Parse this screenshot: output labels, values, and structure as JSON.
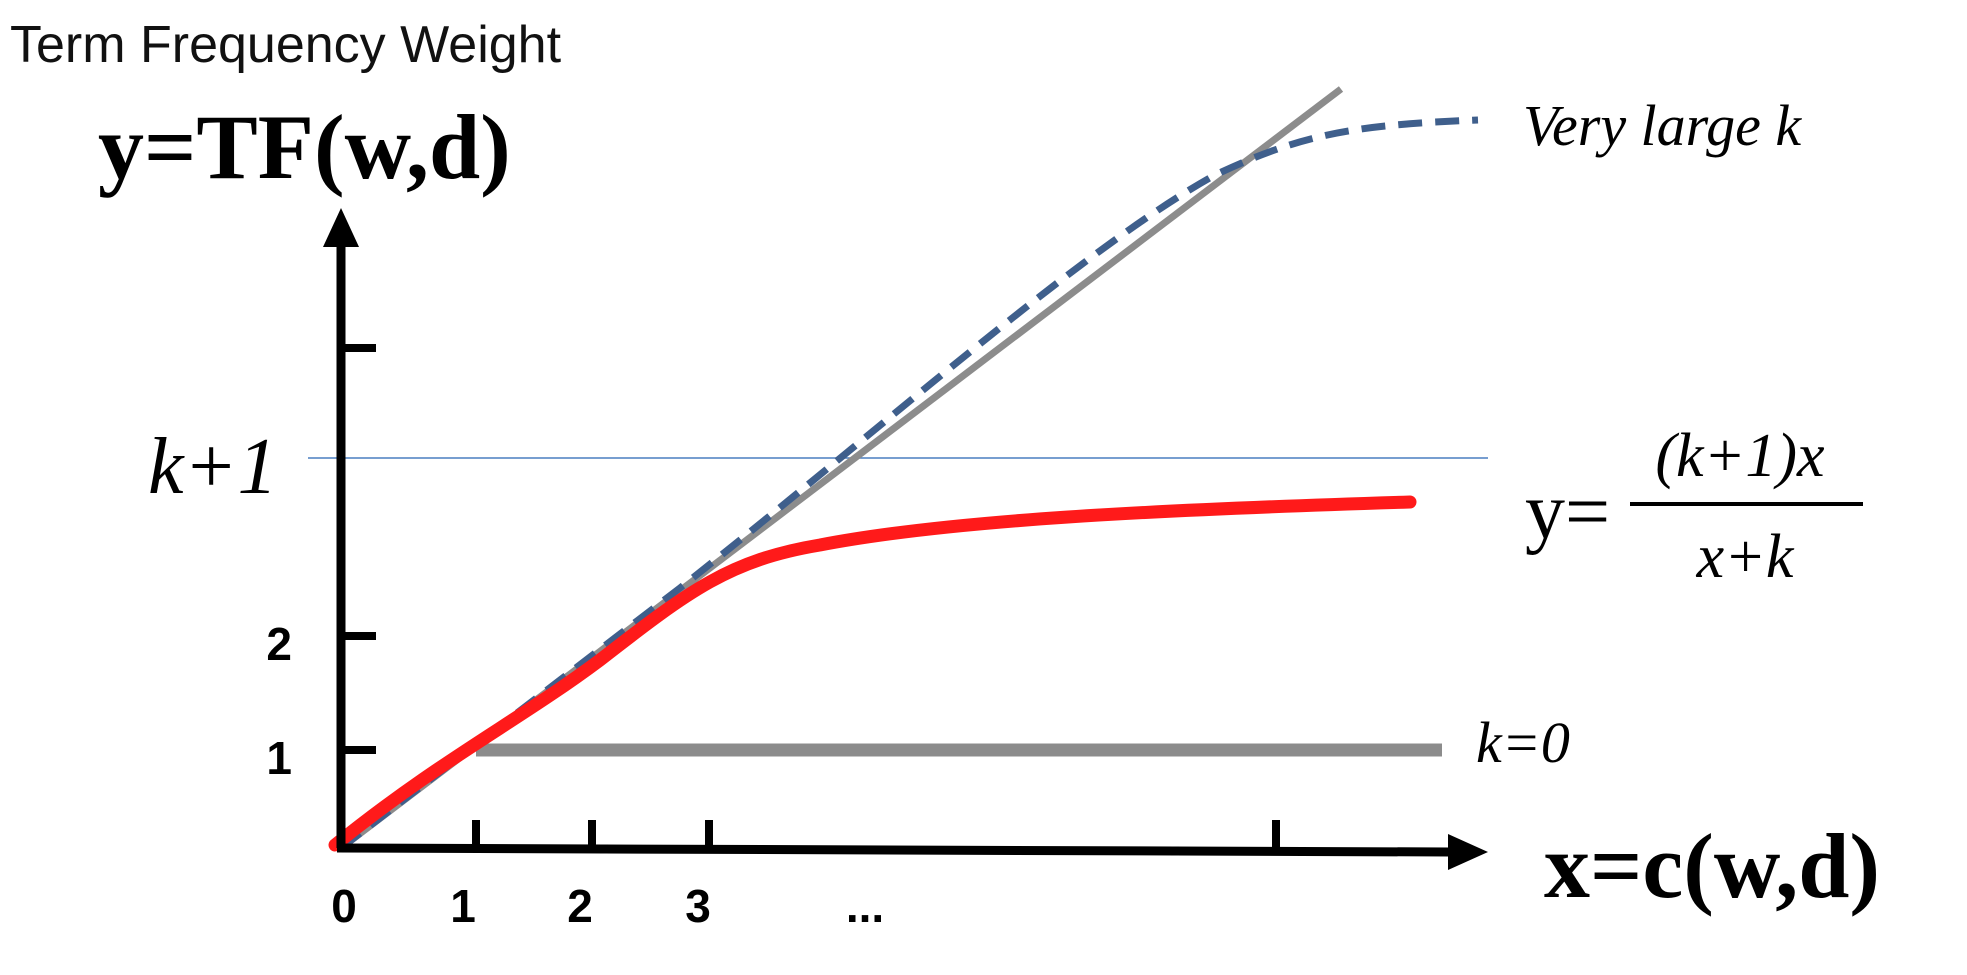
{
  "title": "Term Frequency Weight",
  "y_axis_title": "y=TF(w,d)",
  "x_axis_title": "x=c(w,d)",
  "x_tick_labels": [
    "0",
    "1",
    "2",
    "3",
    "..."
  ],
  "y_tick_labels": [
    "1",
    "2"
  ],
  "k_plus_1_label": "k+1",
  "very_large_k_label": "Very large k",
  "k_zero_label": "k=0",
  "formula": {
    "lhs": "y=",
    "numerator": "(k+1)x",
    "denominator": "x+k"
  },
  "colors": {
    "axes": "#000000",
    "identity_line": "#8c8c8c",
    "very_large_k_curve": "#3f5f8c",
    "bm25_curve": "#ff1a1a",
    "k0_line": "#8c8c8c",
    "k_plus_1_line": "#4a7fc1"
  }
}
